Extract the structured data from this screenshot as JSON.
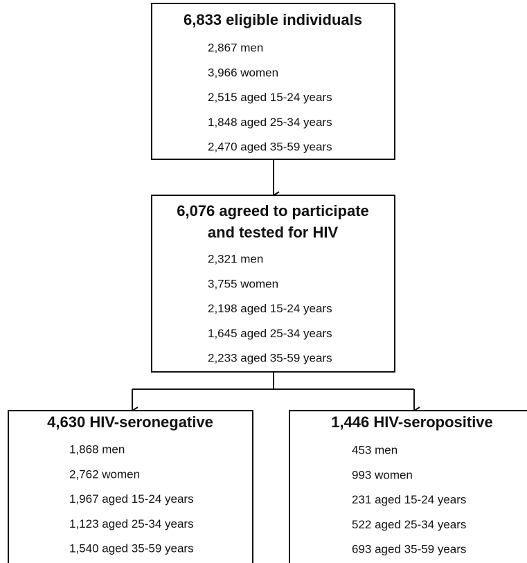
{
  "nodes": [
    {
      "title_lines": [
        "6,833 eligible individuals"
      ],
      "items": [
        "2,867 men",
        "3,966 women",
        "2,515 aged 15-24 years",
        "1,848 aged 25-34 years",
        "2,470 aged 35-59 years"
      ]
    },
    {
      "title_lines": [
        "6,076 agreed to participate",
        "and tested for HIV"
      ],
      "items": [
        "2,321 men",
        "3,755 women",
        "2,198 aged 15-24 years",
        "1,645 aged 25-34 years",
        "2,233 aged 35-59 years"
      ]
    },
    {
      "title_lines": [
        "4,630 HIV-seronegative"
      ],
      "items": [
        "1,868 men",
        "2,762 women",
        "1,967 aged 15-24 years",
        "1,123 aged 25-34 years",
        "1,540 aged 35-59 years"
      ]
    },
    {
      "title_lines": [
        "1,446 HIV-seropositive"
      ],
      "items": [
        "453 men",
        "993 women",
        "231 aged 15-24 years",
        "522 aged 25-34 years",
        "693 aged 35-59 years"
      ]
    }
  ]
}
